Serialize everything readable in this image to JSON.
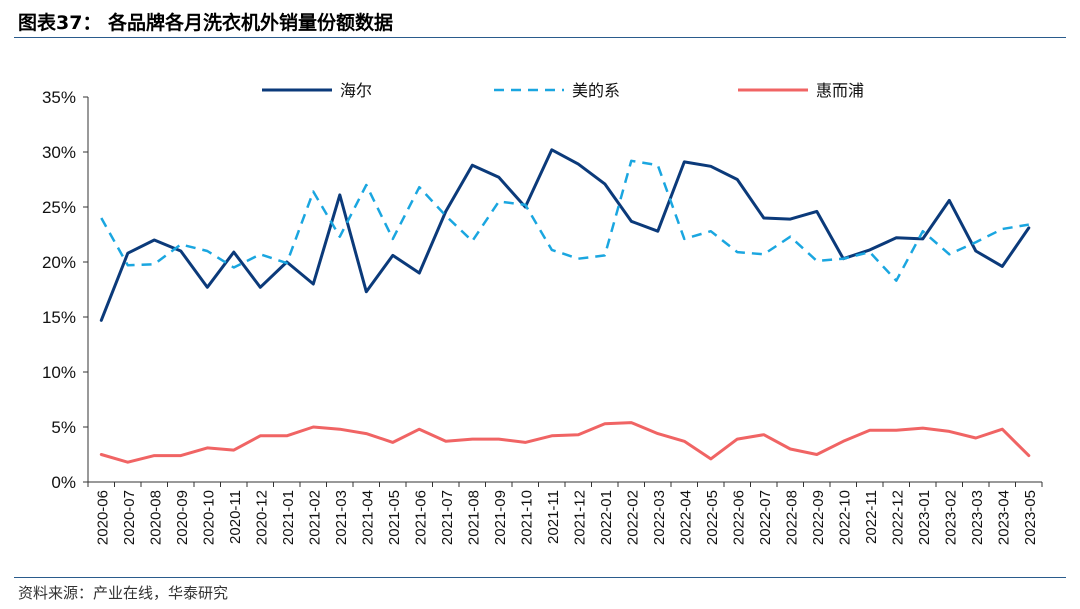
{
  "header": {
    "title": "图表37：  各品牌各月洗衣机外销量份额数据"
  },
  "footer": {
    "source": "资料来源：产业在线，华泰研究"
  },
  "colors": {
    "haier": "#0b3a7a",
    "midea": "#1aa6e0",
    "whirlpool": "#f06464",
    "rule": "#2a5b8c"
  },
  "chart_data": {
    "type": "line",
    "title": "各品牌各月洗衣机外销量份额数据",
    "xlabel": "",
    "ylabel": "",
    "ylim": [
      0,
      35
    ],
    "y_ticks": [
      "0%",
      "5%",
      "10%",
      "15%",
      "20%",
      "25%",
      "30%",
      "35%"
    ],
    "legend_position": "top",
    "grid": false,
    "x": [
      "2020-06",
      "2020-07",
      "2020-08",
      "2020-09",
      "2020-10",
      "2020-11",
      "2020-12",
      "2021-01",
      "2021-02",
      "2021-03",
      "2021-04",
      "2021-05",
      "2021-06",
      "2021-07",
      "2021-08",
      "2021-09",
      "2021-10",
      "2021-11",
      "2021-12",
      "2022-01",
      "2022-02",
      "2022-03",
      "2022-04",
      "2022-05",
      "2022-06",
      "2022-07",
      "2022-08",
      "2022-09",
      "2022-10",
      "2022-11",
      "2022-12",
      "2023-01",
      "2023-02",
      "2023-03",
      "2023-04",
      "2023-05"
    ],
    "series": [
      {
        "name": "海尔",
        "style": "solid",
        "color": "#0b3a7a",
        "values": [
          14.7,
          20.8,
          22.0,
          21.0,
          17.7,
          20.9,
          17.7,
          20.0,
          18.0,
          26.1,
          17.3,
          20.6,
          19.0,
          24.6,
          28.8,
          27.7,
          25.0,
          30.2,
          28.9,
          27.1,
          23.7,
          22.8,
          29.1,
          28.7,
          27.5,
          24.0,
          23.9,
          24.6,
          20.3,
          21.1,
          22.2,
          22.1,
          25.6,
          21.0,
          19.6,
          23.1
        ]
      },
      {
        "name": "美的系",
        "style": "dashed",
        "color": "#1aa6e0",
        "values": [
          24.0,
          19.7,
          19.8,
          21.6,
          21.0,
          19.5,
          20.7,
          19.9,
          26.4,
          22.3,
          27.0,
          22.1,
          26.8,
          24.2,
          21.9,
          25.5,
          25.2,
          21.1,
          20.3,
          20.6,
          29.2,
          28.8,
          22.1,
          22.8,
          20.9,
          20.7,
          22.3,
          20.1,
          20.3,
          20.9,
          18.3,
          22.8,
          20.7,
          21.8,
          23.0,
          23.4
        ]
      },
      {
        "name": "惠而浦",
        "style": "solid",
        "color": "#f06464",
        "values": [
          2.5,
          1.8,
          2.4,
          2.4,
          3.1,
          2.9,
          4.2,
          4.2,
          5.0,
          4.8,
          4.4,
          3.6,
          4.8,
          3.7,
          3.9,
          3.9,
          3.6,
          4.2,
          4.3,
          5.3,
          5.4,
          4.4,
          3.7,
          2.1,
          3.9,
          4.3,
          3.0,
          2.5,
          3.7,
          4.7,
          4.7,
          4.9,
          4.6,
          4.0,
          4.8,
          2.4
        ]
      }
    ]
  }
}
